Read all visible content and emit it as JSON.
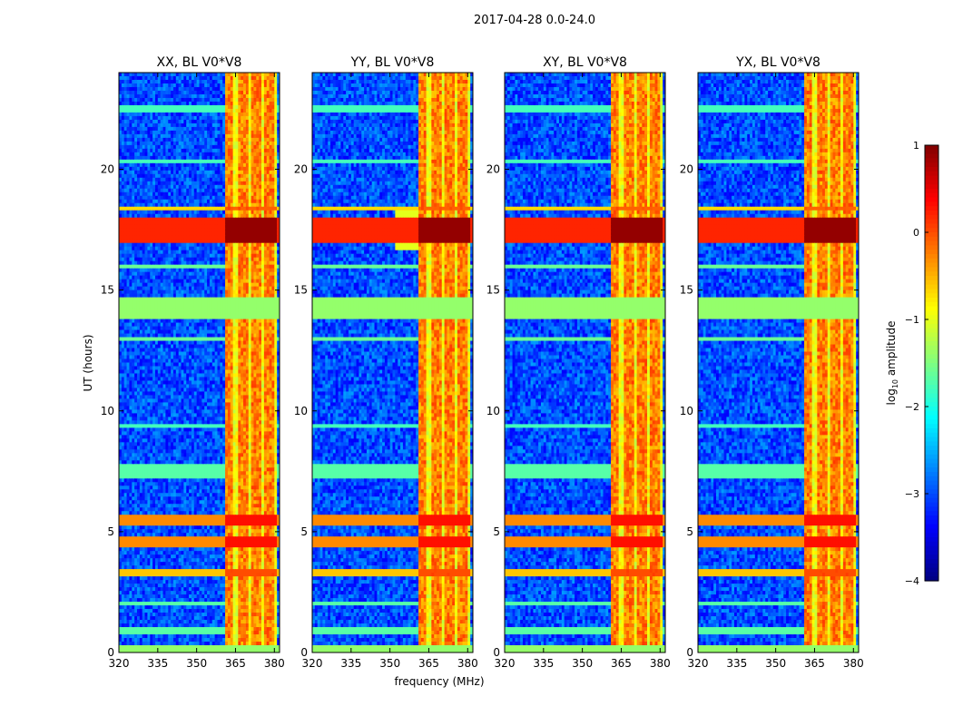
{
  "chart_data": {
    "type": "heatmap",
    "title": "2017-04-28 0.0-24.0",
    "xlabel": "frequency (MHz)",
    "ylabel": "UT (hours)",
    "xlim": [
      320,
      382
    ],
    "ylim": [
      0,
      24
    ],
    "xticks": [
      320,
      335,
      350,
      365,
      380
    ],
    "yticks": [
      0,
      5,
      10,
      15,
      20
    ],
    "colormap": "jet",
    "colorbar": {
      "label": "log10 amplitude",
      "label_prefix": "log",
      "label_subscript": "10",
      "label_suffix": " amplitude",
      "range": [
        -4,
        1
      ],
      "ticks": [
        "1",
        "0",
        "−1",
        "−2",
        "−3",
        "−4"
      ]
    },
    "panels": [
      {
        "name": "XX, BL V0*V8"
      },
      {
        "name": "YY, BL V0*V8"
      },
      {
        "name": "XY, BL V0*V8"
      },
      {
        "name": "YX, BL V0*V8"
      }
    ],
    "strong_band_MHz": [
      361,
      381
    ],
    "bright_columns_MHz": [
      362,
      368,
      373,
      378
    ],
    "background_log_amplitude": -3.0,
    "blanked_rows_hours": [
      [
        13.8,
        14.7
      ],
      [
        0.0,
        0.3
      ]
    ],
    "rfi_rows": [
      {
        "t": 17.5,
        "v": 0.2,
        "w": 0.55
      },
      {
        "t": 5.45,
        "v": -0.3,
        "w": 0.2
      },
      {
        "t": 4.55,
        "v": -0.3,
        "w": 0.2
      },
      {
        "t": 3.3,
        "v": -0.6,
        "w": 0.15
      },
      {
        "t": 18.4,
        "v": -0.7,
        "w": 0.12
      },
      {
        "t": 13.0,
        "v": -1.6,
        "w": 0.08
      },
      {
        "t": 7.5,
        "v": -1.7,
        "w": 0.3
      },
      {
        "t": 16.0,
        "v": -1.6,
        "w": 0.1
      },
      {
        "t": 22.5,
        "v": -1.8,
        "w": 0.1
      },
      {
        "t": 2.0,
        "v": -1.7,
        "w": 0.1
      },
      {
        "t": 0.9,
        "v": -1.7,
        "w": 0.1
      },
      {
        "t": 9.4,
        "v": -1.8,
        "w": 0.08
      },
      {
        "t": 20.3,
        "v": -1.8,
        "w": 0.1
      }
    ]
  }
}
